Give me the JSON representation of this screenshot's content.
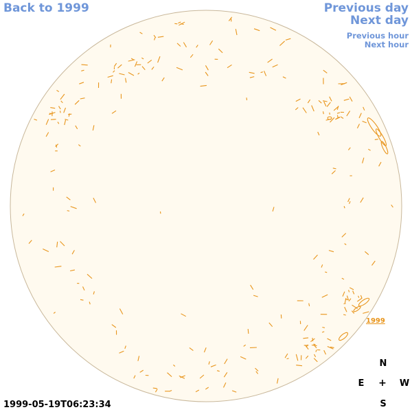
{
  "nav": {
    "back_label": "Back to 1999",
    "previous_day_label": "Previous day",
    "next_day_label": "Next day",
    "previous_hour_label": "Previous hour",
    "next_hour_label": "Next hour"
  },
  "compass": {
    "n": "N",
    "e": "E",
    "center": "+",
    "w": "W",
    "s": "S"
  },
  "timestamp": "1999-05-19T06:23:34",
  "region_label": "1999",
  "colors": {
    "disk_fill": "#fffaef",
    "disk_border": "#c8b79a",
    "contour": "#e8941a",
    "nav": "#6f96d9"
  }
}
